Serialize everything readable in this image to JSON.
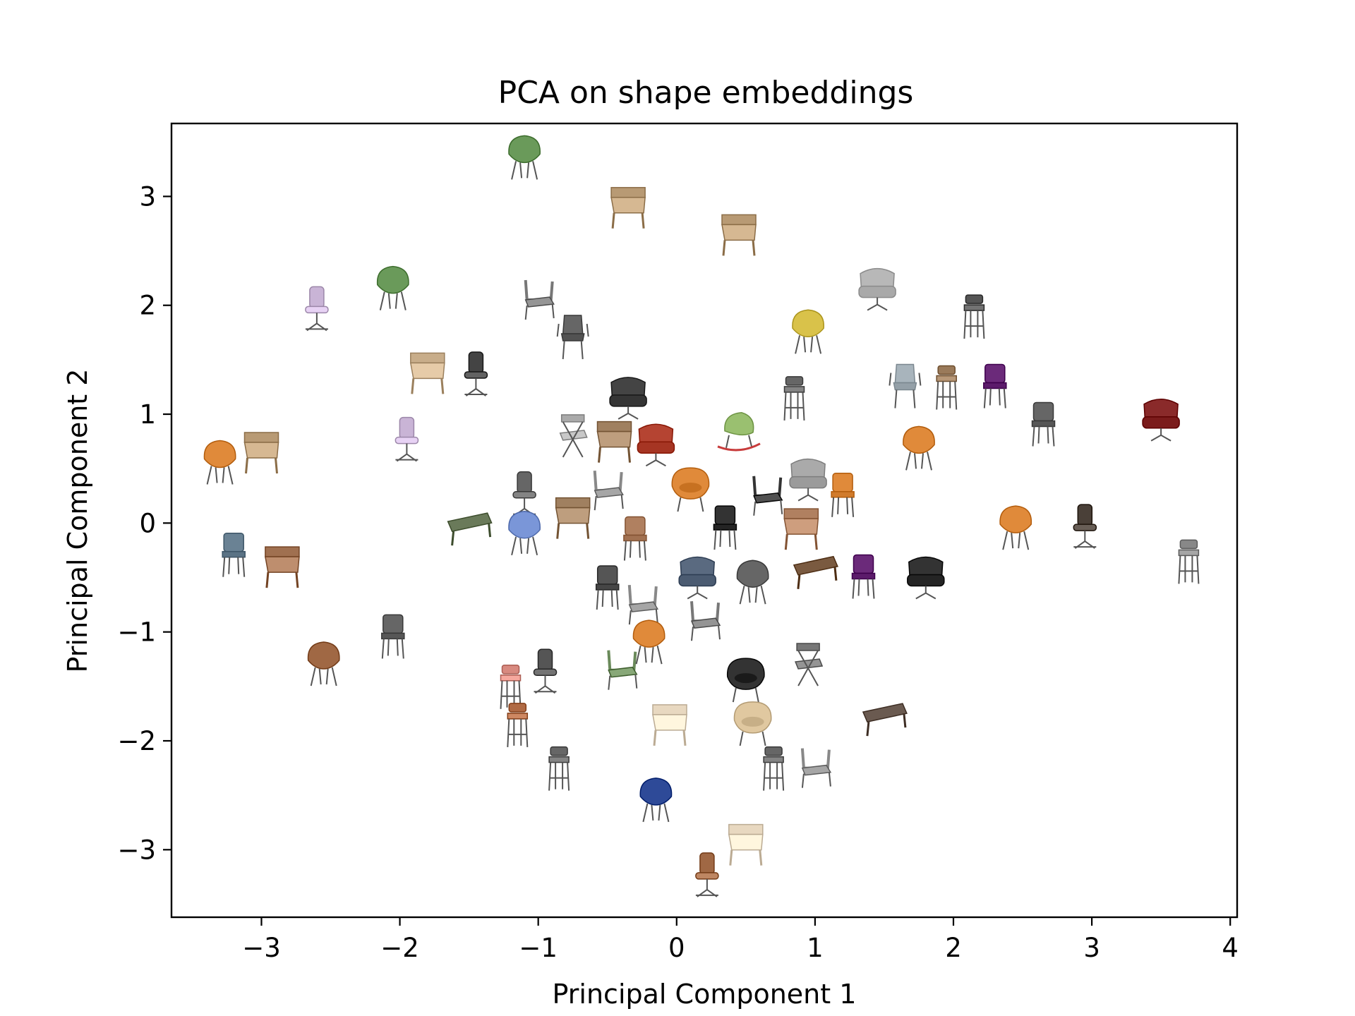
{
  "chart_data": {
    "type": "scatter",
    "title": "PCA on shape embeddings",
    "xlabel": "Principal Component 1",
    "ylabel": "Principal Component 2",
    "xlim": [
      -3.65,
      4.05
    ],
    "ylim": [
      -3.62,
      3.67
    ],
    "xticks": [
      -3,
      -2,
      -1,
      0,
      1,
      2,
      3,
      4
    ],
    "yticks": [
      -3,
      -2,
      -1,
      0,
      1,
      2,
      3
    ],
    "xtick_labels": [
      "−3",
      "−2",
      "−1",
      "0",
      "1",
      "2",
      "3",
      "4"
    ],
    "ytick_labels": [
      "−3",
      "−2",
      "−1",
      "0",
      "1",
      "2",
      "3"
    ],
    "marker": "chair-thumbnail",
    "grid": false,
    "points": [
      {
        "x": -1.1,
        "y": 3.35,
        "color": "#6a9a5a",
        "kind": "shell"
      },
      {
        "x": -0.35,
        "y": 2.9,
        "color": "#b89a74",
        "kind": "wood"
      },
      {
        "x": 0.45,
        "y": 2.65,
        "color": "#b89a74",
        "kind": "wood"
      },
      {
        "x": -2.6,
        "y": 1.95,
        "color": "#c9b4d6",
        "kind": "office"
      },
      {
        "x": -2.05,
        "y": 2.15,
        "color": "#6a9a5a",
        "kind": "shell"
      },
      {
        "x": -1.0,
        "y": 2.05,
        "color": "#777777",
        "kind": "frame"
      },
      {
        "x": -0.75,
        "y": 1.7,
        "color": "#666666",
        "kind": "stack"
      },
      {
        "x": 1.45,
        "y": 2.15,
        "color": "#b8b8b8",
        "kind": "lounge"
      },
      {
        "x": 2.15,
        "y": 1.9,
        "color": "#555555",
        "kind": "stool"
      },
      {
        "x": 0.95,
        "y": 1.75,
        "color": "#d9c24a",
        "kind": "shell"
      },
      {
        "x": -1.8,
        "y": 1.38,
        "color": "#c8ad8a",
        "kind": "wood"
      },
      {
        "x": -1.45,
        "y": 1.35,
        "color": "#444444",
        "kind": "office"
      },
      {
        "x": -0.35,
        "y": 1.15,
        "color": "#444444",
        "kind": "lounge"
      },
      {
        "x": 0.85,
        "y": 1.15,
        "color": "#666666",
        "kind": "stool"
      },
      {
        "x": 1.65,
        "y": 1.25,
        "color": "#a8b4bc",
        "kind": "stack"
      },
      {
        "x": 1.95,
        "y": 1.25,
        "color": "#9a7a5a",
        "kind": "stool"
      },
      {
        "x": 2.3,
        "y": 1.25,
        "color": "#6b2a7a",
        "kind": "side"
      },
      {
        "x": 2.65,
        "y": 0.9,
        "color": "#666666",
        "kind": "side"
      },
      {
        "x": 3.5,
        "y": 0.95,
        "color": "#8a2a2a",
        "kind": "lounge"
      },
      {
        "x": -3.3,
        "y": 0.55,
        "color": "#e08a3a",
        "kind": "shell"
      },
      {
        "x": -3.0,
        "y": 0.65,
        "color": "#b89a74",
        "kind": "wood"
      },
      {
        "x": -1.95,
        "y": 0.75,
        "color": "#c9b4d6",
        "kind": "office"
      },
      {
        "x": -0.75,
        "y": 0.8,
        "color": "#aaaaaa",
        "kind": "folding"
      },
      {
        "x": -0.45,
        "y": 0.75,
        "color": "#a08060",
        "kind": "wood"
      },
      {
        "x": -0.15,
        "y": 0.72,
        "color": "#b54432",
        "kind": "lounge"
      },
      {
        "x": 0.45,
        "y": 0.82,
        "color": "#9ac070",
        "kind": "rocker"
      },
      {
        "x": 1.75,
        "y": 0.68,
        "color": "#e08a3a",
        "kind": "shell"
      },
      {
        "x": -1.1,
        "y": 0.25,
        "color": "#666666",
        "kind": "office"
      },
      {
        "x": -0.5,
        "y": 0.3,
        "color": "#888888",
        "kind": "frame"
      },
      {
        "x": 0.1,
        "y": 0.3,
        "color": "#e08a3a",
        "kind": "tub"
      },
      {
        "x": 0.65,
        "y": 0.25,
        "color": "#333333",
        "kind": "frame"
      },
      {
        "x": 0.95,
        "y": 0.4,
        "color": "#aaaaaa",
        "kind": "lounge"
      },
      {
        "x": 1.2,
        "y": 0.25,
        "color": "#e08a3a",
        "kind": "side"
      },
      {
        "x": -1.5,
        "y": -0.05,
        "color": "#6a7a5a",
        "kind": "bench"
      },
      {
        "x": -1.1,
        "y": -0.1,
        "color": "#7a96d8",
        "kind": "shell"
      },
      {
        "x": -0.75,
        "y": 0.05,
        "color": "#a08060",
        "kind": "wood"
      },
      {
        "x": -0.3,
        "y": -0.15,
        "color": "#b08060",
        "kind": "side"
      },
      {
        "x": 0.35,
        "y": -0.05,
        "color": "#333333",
        "kind": "side"
      },
      {
        "x": 0.9,
        "y": -0.05,
        "color": "#b08060",
        "kind": "wood"
      },
      {
        "x": 2.45,
        "y": -0.05,
        "color": "#e08a3a",
        "kind": "shell"
      },
      {
        "x": 2.95,
        "y": -0.05,
        "color": "#4a4038",
        "kind": "office"
      },
      {
        "x": -3.2,
        "y": -0.3,
        "color": "#6a8294",
        "kind": "side"
      },
      {
        "x": -2.85,
        "y": -0.4,
        "color": "#a07050",
        "kind": "wood"
      },
      {
        "x": -0.5,
        "y": -0.6,
        "color": "#555555",
        "kind": "side"
      },
      {
        "x": 0.15,
        "y": -0.5,
        "color": "#5a6a80",
        "kind": "lounge"
      },
      {
        "x": 0.55,
        "y": -0.55,
        "color": "#666666",
        "kind": "shell"
      },
      {
        "x": 1.0,
        "y": -0.45,
        "color": "#7a5a40",
        "kind": "bench"
      },
      {
        "x": 1.35,
        "y": -0.5,
        "color": "#6b2a7a",
        "kind": "side"
      },
      {
        "x": 1.8,
        "y": -0.5,
        "color": "#333333",
        "kind": "lounge"
      },
      {
        "x": 3.7,
        "y": -0.35,
        "color": "#888888",
        "kind": "stool"
      },
      {
        "x": -0.25,
        "y": -0.75,
        "color": "#888888",
        "kind": "frame"
      },
      {
        "x": 0.2,
        "y": -0.9,
        "color": "#777777",
        "kind": "frame"
      },
      {
        "x": -2.55,
        "y": -1.3,
        "color": "#a06844",
        "kind": "shell"
      },
      {
        "x": -2.05,
        "y": -1.05,
        "color": "#666666",
        "kind": "side"
      },
      {
        "x": -1.2,
        "y": -1.5,
        "color": "#d88a80",
        "kind": "stool"
      },
      {
        "x": -0.95,
        "y": -1.38,
        "color": "#555555",
        "kind": "office"
      },
      {
        "x": -0.4,
        "y": -1.35,
        "color": "#6a8a5a",
        "kind": "frame"
      },
      {
        "x": -0.2,
        "y": -1.1,
        "color": "#e08a3a",
        "kind": "shell"
      },
      {
        "x": 0.5,
        "y": -1.45,
        "color": "#333333",
        "kind": "tub"
      },
      {
        "x": 0.95,
        "y": -1.3,
        "color": "#777777",
        "kind": "folding"
      },
      {
        "x": -1.15,
        "y": -1.85,
        "color": "#b06a44",
        "kind": "stool"
      },
      {
        "x": -0.85,
        "y": -2.25,
        "color": "#666666",
        "kind": "stool"
      },
      {
        "x": -0.05,
        "y": -1.85,
        "color": "#e8d8c0",
        "kind": "wood"
      },
      {
        "x": 0.55,
        "y": -1.85,
        "color": "#e0c8a0",
        "kind": "tub"
      },
      {
        "x": 1.5,
        "y": -1.8,
        "color": "#6a5a50",
        "kind": "bench"
      },
      {
        "x": 0.7,
        "y": -2.25,
        "color": "#666666",
        "kind": "stool"
      },
      {
        "x": 1.0,
        "y": -2.25,
        "color": "#888888",
        "kind": "frame"
      },
      {
        "x": -0.15,
        "y": -2.55,
        "color": "#2e4a98",
        "kind": "shell"
      },
      {
        "x": 0.5,
        "y": -2.95,
        "color": "#e8d8c0",
        "kind": "wood"
      },
      {
        "x": 0.22,
        "y": -3.25,
        "color": "#a06844",
        "kind": "office"
      }
    ]
  }
}
